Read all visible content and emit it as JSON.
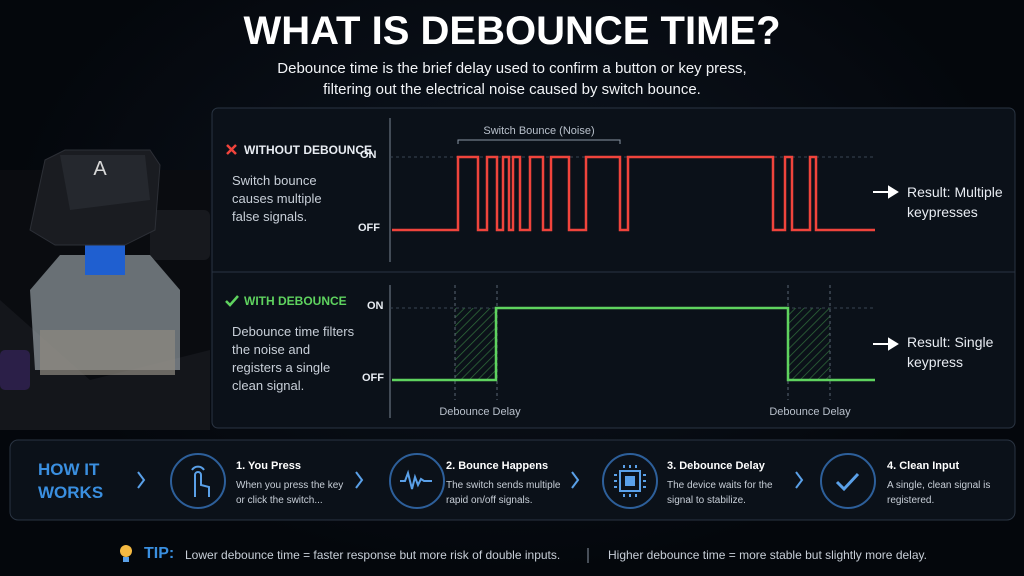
{
  "header": {
    "title": "WHAT IS DEBOUNCE TIME?",
    "subtitle": "Debounce time is the brief delay used to confirm a button or key press, filtering out the electrical noise caused by switch bounce."
  },
  "keycap": {
    "letter": "A"
  },
  "without_debounce": {
    "label": "WITHOUT DEBOUNCE",
    "description": "Switch bounce causes multiple false signals.",
    "on": "ON",
    "off": "OFF",
    "bounce": "Switch Bounce (Noise)",
    "result": "Result: Multiple keypresses"
  },
  "with_debounce": {
    "label": "WITH DEBOUNCE",
    "description": "Debounce time filters the noise and registers a single clean signal.",
    "on": "ON",
    "off": "OFF",
    "delays": [
      "Debounce Delay",
      "Debounce Delay"
    ],
    "result": "Result: Single keypress"
  },
  "how_it_works": {
    "title": "HOW IT WORKS",
    "steps": [
      {
        "title": "1. You Press",
        "text": "When you press the key or click the switch..."
      },
      {
        "title": "2. Bounce Happens",
        "text": "The switch sends multiple rapid on/off signals."
      },
      {
        "title": "3. Debounce Delay",
        "text": "The device waits for the signal to stabilize."
      },
      {
        "title": "4. Clean Input",
        "text": "A single, clean signal is registered."
      }
    ]
  },
  "tip": {
    "label": "TIP:",
    "items": [
      "Lower debounce time = faster response but more risk of double inputs.",
      "Higher debounce time = more stable but slightly more delay."
    ]
  }
}
